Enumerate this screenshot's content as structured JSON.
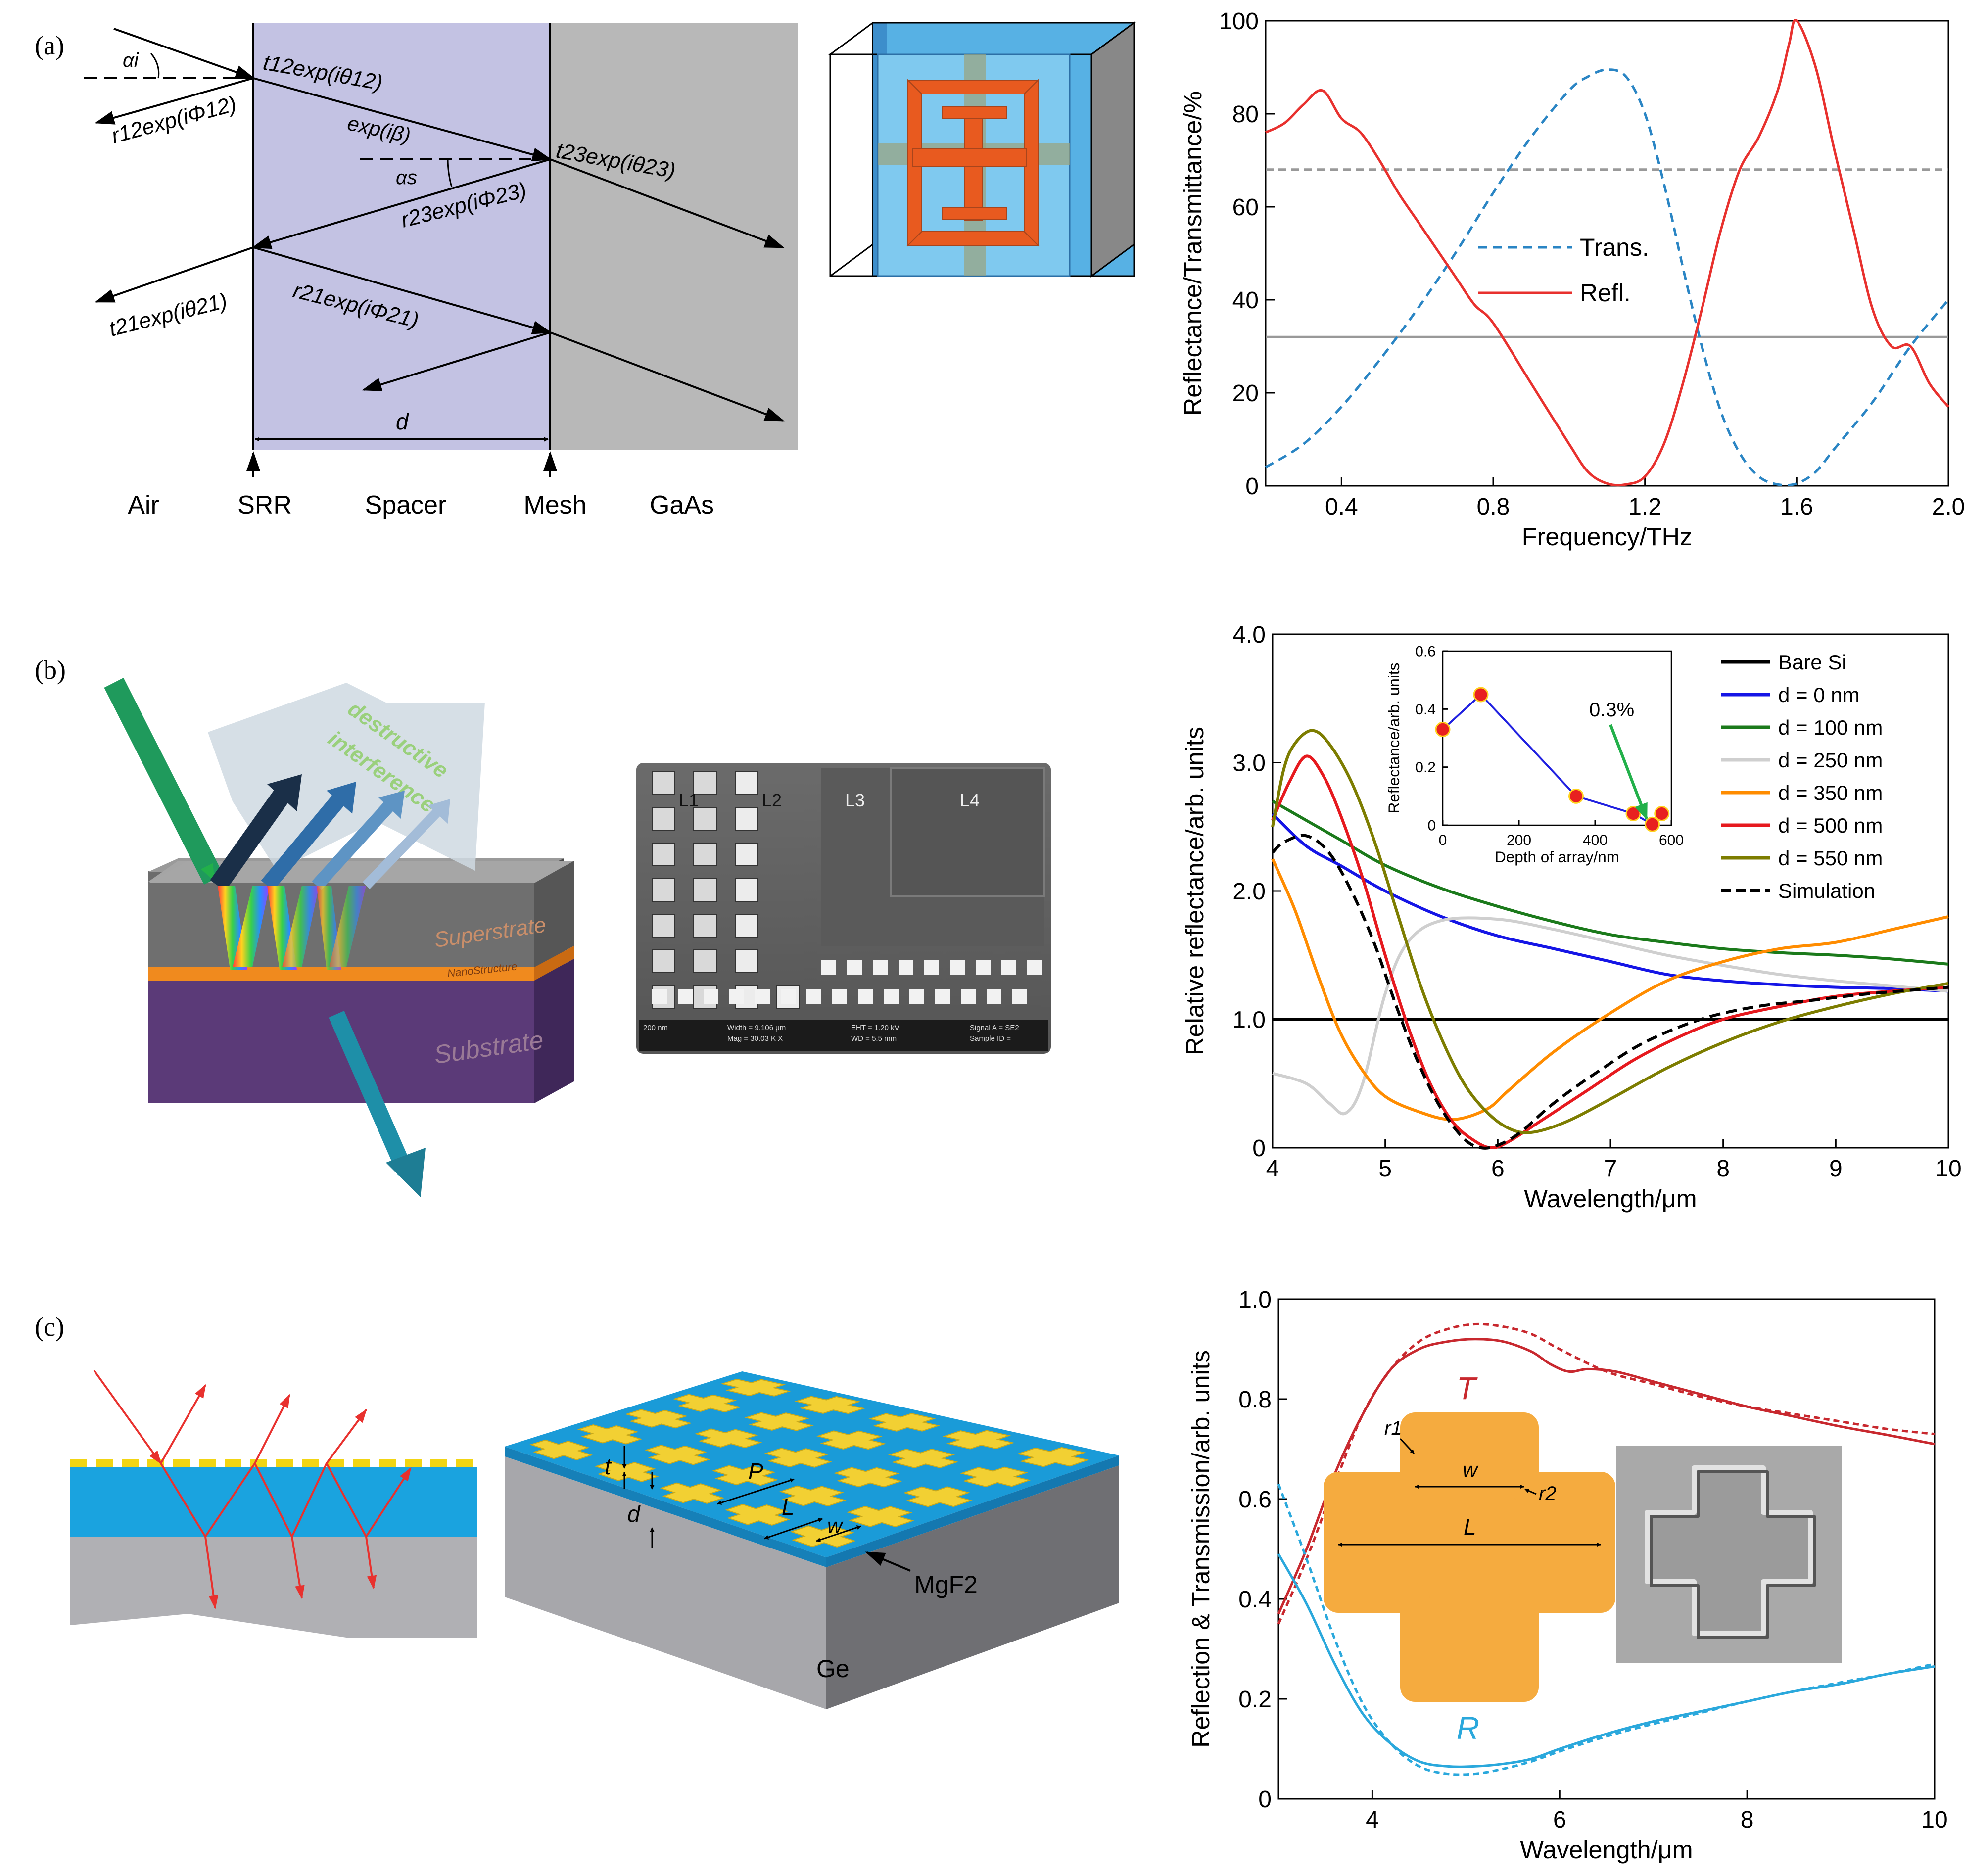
{
  "panels": {
    "a": {
      "label": "(a)",
      "diagram": {
        "alpha_i": "αi",
        "alpha_s": "αs",
        "t12": "t12exp(iθ12)",
        "r12": "r12exp(iΦ12)",
        "expb": "exp(iβ)",
        "t23": "t23exp(iθ23)",
        "r23": "r23exp(iΦ23)",
        "t21": "t21exp(iθ21)",
        "r21": "r21exp(iΦ21)",
        "d": "d",
        "layers": [
          "Air",
          "SRR",
          "Spacer",
          "Mesh",
          "GaAs"
        ]
      }
    },
    "b": {
      "label": "(b)",
      "illustration": {
        "text1": "destructive",
        "text2": "interference",
        "superstrate": "Superstrate",
        "nano": "NanoStructure",
        "substrate": "Substrate"
      },
      "sem": {
        "labels": [
          "L1",
          "L2",
          "L3",
          "L4"
        ],
        "footer": [
          "200 nm",
          "Width = 9.106 μm",
          "EHT = 1.20 kV",
          "Signal A = SE2",
          "Mag = 30.03 K X",
          "WD = 5.5 mm",
          "Sample ID ="
        ]
      }
    },
    "c": {
      "label": "(c)",
      "schematic": {
        "t": "t",
        "d": "d",
        "P": "P",
        "L": "L",
        "w": "w",
        "mgf2": "MgF2",
        "ge": "Ge"
      },
      "inset": {
        "r1": "r1",
        "r2": "r2",
        "w": "w",
        "L": "L"
      }
    }
  },
  "colors": {
    "spacer": "#c3c2e3",
    "gaas": "#b8b8b8",
    "red": "#e8312e",
    "blue": "#2a85c4",
    "cyan": "#2aa8dc",
    "black": "#000000",
    "green": "#1b7a1b",
    "lightgray": "#cfcfcf",
    "orange": "#ff8c00",
    "olive": "#7d7d00",
    "darkred": "#c8282e",
    "orangeFill": "#f5ab3f"
  },
  "chart_data": [
    {
      "id": "chart-a",
      "type": "line",
      "xlabel": "Frequency/THz",
      "ylabel": "Reflectance/Transmittance/%",
      "xlim": [
        0.2,
        2.0
      ],
      "ylim": [
        0,
        100
      ],
      "xticks": [
        "0.4",
        "0.8",
        "1.2",
        "1.6",
        "2.0"
      ],
      "yticks": [
        "0",
        "20",
        "40",
        "60",
        "80",
        "100"
      ],
      "reference_lines": [
        68,
        32
      ],
      "legend": [
        "Trans.",
        "Refl."
      ],
      "series": [
        {
          "name": "Trans.",
          "style": "dashed",
          "color": "#2a85c4",
          "x": [
            0.2,
            0.3,
            0.4,
            0.5,
            0.6,
            0.7,
            0.8,
            0.9,
            1.0,
            1.05,
            1.1,
            1.15,
            1.2,
            1.25,
            1.3,
            1.35,
            1.4,
            1.45,
            1.5,
            1.55,
            1.6,
            1.65,
            1.7,
            1.8,
            1.9,
            2.0
          ],
          "y": [
            4,
            9,
            17,
            27,
            38,
            50,
            63,
            75,
            85,
            88,
            89.5,
            88,
            80,
            65,
            47,
            30,
            16,
            7,
            2,
            0.3,
            0.5,
            3,
            8,
            18,
            30,
            40
          ]
        },
        {
          "name": "Refl.",
          "style": "solid",
          "color": "#e8312e",
          "x": [
            0.2,
            0.25,
            0.3,
            0.35,
            0.4,
            0.45,
            0.5,
            0.55,
            0.6,
            0.65,
            0.7,
            0.75,
            0.8,
            0.9,
            1.0,
            1.05,
            1.1,
            1.15,
            1.2,
            1.25,
            1.3,
            1.35,
            1.4,
            1.45,
            1.5,
            1.55,
            1.58,
            1.6,
            1.65,
            1.7,
            1.75,
            1.8,
            1.85,
            1.9,
            1.95,
            2.0
          ],
          "y": [
            76,
            78,
            82,
            85,
            79,
            76,
            70,
            63,
            57,
            51,
            45,
            39,
            35,
            22,
            9,
            3,
            0.5,
            0.3,
            2,
            9,
            22,
            38,
            55,
            68,
            75,
            85,
            95,
            100,
            90,
            72,
            55,
            38,
            30,
            30,
            22,
            17
          ]
        }
      ]
    },
    {
      "id": "chart-b",
      "type": "line",
      "xlabel": "Wavelength/μm",
      "ylabel": "Relative reflectance/arb. units",
      "xlim": [
        4,
        10
      ],
      "ylim": [
        0,
        4
      ],
      "xticks": [
        "4",
        "5",
        "6",
        "7",
        "8",
        "9",
        "10"
      ],
      "yticks": [
        "0",
        "1.0",
        "2.0",
        "3.0",
        "4.0"
      ],
      "legend": [
        "Bare Si",
        "d = 0 nm",
        "d = 100 nm",
        "d = 250 nm",
        "d = 350 nm",
        "d = 500 nm",
        "d = 550 nm",
        "Simulation"
      ],
      "series": [
        {
          "name": "Bare Si",
          "color": "#000000",
          "style": "solid",
          "x": [
            4,
            10
          ],
          "y": [
            1.0,
            1.0
          ]
        },
        {
          "name": "d = 0 nm",
          "color": "#1515e6",
          "style": "solid",
          "x": [
            4,
            4.3,
            4.6,
            5,
            5.5,
            6,
            6.5,
            7,
            7.5,
            8,
            8.5,
            9,
            9.5,
            10
          ],
          "y": [
            2.6,
            2.35,
            2.2,
            2.0,
            1.8,
            1.65,
            1.55,
            1.45,
            1.35,
            1.3,
            1.27,
            1.25,
            1.24,
            1.22
          ]
        },
        {
          "name": "d = 100 nm",
          "color": "#1b7a1b",
          "style": "solid",
          "x": [
            4,
            4.3,
            4.6,
            5,
            5.5,
            6,
            6.5,
            7,
            7.5,
            8,
            8.5,
            9,
            9.5,
            10
          ],
          "y": [
            2.7,
            2.55,
            2.4,
            2.2,
            2.02,
            1.88,
            1.76,
            1.66,
            1.6,
            1.55,
            1.52,
            1.5,
            1.47,
            1.43
          ]
        },
        {
          "name": "d = 250 nm",
          "color": "#cfcfcf",
          "style": "solid",
          "x": [
            4,
            4.3,
            4.5,
            4.65,
            4.8,
            5.0,
            5.2,
            5.5,
            6,
            6.5,
            7,
            7.5,
            8,
            8.5,
            9,
            9.5,
            10
          ],
          "y": [
            0.58,
            0.5,
            0.35,
            0.27,
            0.5,
            1.2,
            1.6,
            1.77,
            1.78,
            1.7,
            1.6,
            1.5,
            1.42,
            1.35,
            1.3,
            1.26,
            1.22
          ]
        },
        {
          "name": "d = 350 nm",
          "color": "#ff8c00",
          "style": "solid",
          "x": [
            4,
            4.2,
            4.4,
            4.6,
            4.8,
            5.0,
            5.3,
            5.6,
            5.9,
            6.1,
            6.5,
            7,
            7.5,
            8,
            8.5,
            9,
            9.5,
            10
          ],
          "y": [
            2.25,
            1.85,
            1.35,
            0.9,
            0.6,
            0.4,
            0.28,
            0.22,
            0.3,
            0.45,
            0.75,
            1.05,
            1.3,
            1.45,
            1.55,
            1.6,
            1.7,
            1.8
          ]
        },
        {
          "name": "d = 500 nm",
          "color": "#e6191e",
          "style": "solid",
          "x": [
            4,
            4.15,
            4.3,
            4.45,
            4.6,
            4.8,
            5.0,
            5.2,
            5.4,
            5.6,
            5.8,
            5.95,
            6.1,
            6.4,
            6.8,
            7.2,
            7.6,
            8,
            8.5,
            9,
            9.5,
            10
          ],
          "y": [
            2.55,
            2.85,
            3.05,
            2.9,
            2.6,
            2.1,
            1.5,
            0.95,
            0.5,
            0.2,
            0.05,
            0.0,
            0.05,
            0.22,
            0.45,
            0.68,
            0.86,
            1.0,
            1.1,
            1.18,
            1.22,
            1.25
          ]
        },
        {
          "name": "d = 550 nm",
          "color": "#7d7d00",
          "style": "solid",
          "x": [
            4,
            4.1,
            4.2,
            4.35,
            4.5,
            4.7,
            4.9,
            5.1,
            5.3,
            5.5,
            5.7,
            5.9,
            6.1,
            6.3,
            6.6,
            7,
            7.5,
            8,
            8.5,
            9,
            9.5,
            10
          ],
          "y": [
            2.5,
            2.95,
            3.15,
            3.25,
            3.15,
            2.85,
            2.4,
            1.85,
            1.3,
            0.85,
            0.5,
            0.28,
            0.15,
            0.12,
            0.2,
            0.38,
            0.62,
            0.82,
            0.98,
            1.1,
            1.2,
            1.28
          ]
        },
        {
          "name": "Simulation",
          "color": "#000000",
          "style": "dashed",
          "x": [
            4,
            4.1,
            4.3,
            4.5,
            4.7,
            4.9,
            5.1,
            5.3,
            5.5,
            5.7,
            5.85,
            6.0,
            6.2,
            6.5,
            6.9,
            7.3,
            7.8,
            8.3,
            8.8,
            9.3,
            10
          ],
          "y": [
            2.3,
            2.38,
            2.43,
            2.3,
            2.0,
            1.6,
            1.1,
            0.65,
            0.3,
            0.07,
            0.0,
            0.02,
            0.12,
            0.35,
            0.6,
            0.82,
            1.0,
            1.1,
            1.15,
            1.2,
            1.25
          ]
        }
      ]
    },
    {
      "id": "chart-b-inset",
      "type": "line",
      "xlabel": "Depth of array/nm",
      "ylabel": "Reflectance/arb. units",
      "xlim": [
        0,
        600
      ],
      "ylim": [
        0,
        0.6
      ],
      "xticks": [
        "0",
        "200",
        "400",
        "600"
      ],
      "yticks": [
        "0",
        "0.2",
        "0.4",
        "0.6"
      ],
      "annotation": "0.3%",
      "x": [
        0,
        100,
        350,
        500,
        550,
        575
      ],
      "y": [
        0.33,
        0.45,
        0.1,
        0.04,
        0.003,
        0.04
      ]
    },
    {
      "id": "chart-c",
      "type": "line",
      "xlabel": "Wavelength/μm",
      "ylabel": "Reflection & Transmission/arb. units",
      "xlim": [
        3,
        10
      ],
      "ylim": [
        0,
        1.0
      ],
      "xticks": [
        "4",
        "6",
        "8",
        "10"
      ],
      "yticks": [
        "0",
        "0.2",
        "0.4",
        "0.6",
        "0.8",
        "1.0"
      ],
      "labels": {
        "T": "T",
        "R": "R"
      },
      "series": [
        {
          "name": "T (measured)",
          "color": "#c8282e",
          "style": "solid",
          "x": [
            3,
            3.3,
            3.6,
            3.9,
            4.2,
            4.5,
            4.8,
            5.1,
            5.4,
            5.7,
            5.9,
            6.1,
            6.3,
            6.6,
            7,
            7.5,
            8,
            8.5,
            9,
            9.5,
            10
          ],
          "y": [
            0.37,
            0.5,
            0.65,
            0.77,
            0.86,
            0.9,
            0.915,
            0.92,
            0.915,
            0.895,
            0.87,
            0.855,
            0.86,
            0.855,
            0.835,
            0.81,
            0.785,
            0.765,
            0.745,
            0.728,
            0.71
          ]
        },
        {
          "name": "T (simulated)",
          "color": "#c8282e",
          "style": "dashed",
          "x": [
            3,
            3.3,
            3.6,
            3.9,
            4.2,
            4.5,
            4.8,
            5.1,
            5.4,
            5.7,
            6,
            6.5,
            7,
            7.5,
            8,
            8.5,
            9,
            9.5,
            10
          ],
          "y": [
            0.35,
            0.48,
            0.63,
            0.77,
            0.86,
            0.915,
            0.94,
            0.95,
            0.945,
            0.93,
            0.9,
            0.855,
            0.83,
            0.805,
            0.785,
            0.77,
            0.755,
            0.74,
            0.73
          ]
        },
        {
          "name": "R (measured)",
          "color": "#2aa8dc",
          "style": "solid",
          "x": [
            3,
            3.3,
            3.6,
            3.9,
            4.2,
            4.5,
            4.8,
            5.1,
            5.4,
            5.7,
            6,
            6.5,
            7,
            7.5,
            8,
            8.5,
            9,
            9.5,
            10
          ],
          "y": [
            0.49,
            0.39,
            0.27,
            0.17,
            0.11,
            0.075,
            0.065,
            0.065,
            0.07,
            0.08,
            0.1,
            0.13,
            0.155,
            0.175,
            0.195,
            0.215,
            0.23,
            0.25,
            0.265
          ]
        },
        {
          "name": "R (simulated)",
          "color": "#2aa8dc",
          "style": "dashed",
          "x": [
            3,
            3.3,
            3.6,
            3.9,
            4.2,
            4.5,
            4.8,
            5.1,
            5.4,
            5.7,
            6,
            6.5,
            7,
            7.5,
            8,
            8.5,
            9,
            9.5,
            10
          ],
          "y": [
            0.63,
            0.48,
            0.32,
            0.19,
            0.11,
            0.065,
            0.05,
            0.05,
            0.06,
            0.075,
            0.095,
            0.125,
            0.15,
            0.172,
            0.195,
            0.215,
            0.233,
            0.25,
            0.27
          ]
        }
      ]
    }
  ]
}
